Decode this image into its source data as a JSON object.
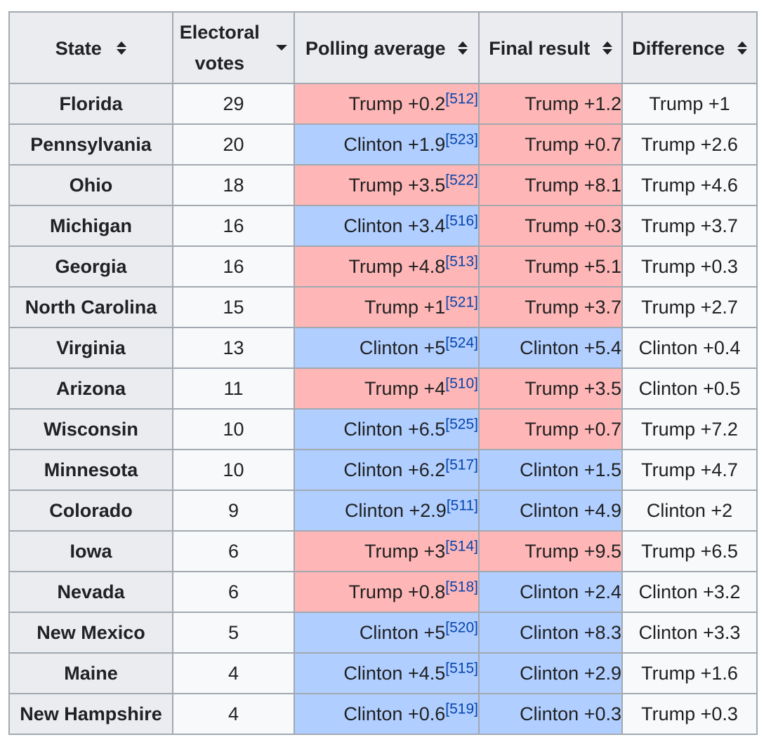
{
  "table": {
    "headers": {
      "state": "State",
      "electoral_line1": "Electoral",
      "electoral_line2": "votes",
      "polling": "Polling average",
      "final": "Final result",
      "difference": "Difference"
    },
    "rows": [
      {
        "state": "Florida",
        "votes": "29",
        "poll": "Trump +0.2",
        "poll_ref": "512",
        "poll_party": "rep",
        "final": "Trump +1.2",
        "final_party": "rep",
        "diff": "Trump +1"
      },
      {
        "state": "Pennsylvania",
        "votes": "20",
        "poll": "Clinton +1.9",
        "poll_ref": "523",
        "poll_party": "dem",
        "final": "Trump +0.7",
        "final_party": "rep",
        "diff": "Trump +2.6"
      },
      {
        "state": "Ohio",
        "votes": "18",
        "poll": "Trump +3.5",
        "poll_ref": "522",
        "poll_party": "rep",
        "final": "Trump +8.1",
        "final_party": "rep",
        "diff": "Trump +4.6"
      },
      {
        "state": "Michigan",
        "votes": "16",
        "poll": "Clinton +3.4",
        "poll_ref": "516",
        "poll_party": "dem",
        "final": "Trump +0.3",
        "final_party": "rep",
        "diff": "Trump +3.7"
      },
      {
        "state": "Georgia",
        "votes": "16",
        "poll": "Trump +4.8",
        "poll_ref": "513",
        "poll_party": "rep",
        "final": "Trump +5.1",
        "final_party": "rep",
        "diff": "Trump +0.3"
      },
      {
        "state": "North Carolina",
        "votes": "15",
        "poll": "Trump +1",
        "poll_ref": "521",
        "poll_party": "rep",
        "final": "Trump +3.7",
        "final_party": "rep",
        "diff": "Trump +2.7"
      },
      {
        "state": "Virginia",
        "votes": "13",
        "poll": "Clinton +5",
        "poll_ref": "524",
        "poll_party": "dem",
        "final": "Clinton +5.4",
        "final_party": "dem",
        "diff": "Clinton +0.4"
      },
      {
        "state": "Arizona",
        "votes": "11",
        "poll": "Trump +4",
        "poll_ref": "510",
        "poll_party": "rep",
        "final": "Trump +3.5",
        "final_party": "rep",
        "diff": "Clinton +0.5"
      },
      {
        "state": "Wisconsin",
        "votes": "10",
        "poll": "Clinton +6.5",
        "poll_ref": "525",
        "poll_party": "dem",
        "final": "Trump +0.7",
        "final_party": "rep",
        "diff": "Trump +7.2"
      },
      {
        "state": "Minnesota",
        "votes": "10",
        "poll": "Clinton +6.2",
        "poll_ref": "517",
        "poll_party": "dem",
        "final": "Clinton +1.5",
        "final_party": "dem",
        "diff": "Trump +4.7"
      },
      {
        "state": "Colorado",
        "votes": "9",
        "poll": "Clinton +2.9",
        "poll_ref": "511",
        "poll_party": "dem",
        "final": "Clinton +4.9",
        "final_party": "dem",
        "diff": "Clinton +2"
      },
      {
        "state": "Iowa",
        "votes": "6",
        "poll": "Trump +3",
        "poll_ref": "514",
        "poll_party": "rep",
        "final": "Trump +9.5",
        "final_party": "rep",
        "diff": "Trump +6.5"
      },
      {
        "state": "Nevada",
        "votes": "6",
        "poll": "Trump +0.8",
        "poll_ref": "518",
        "poll_party": "rep",
        "final": "Clinton +2.4",
        "final_party": "dem",
        "diff": "Clinton +3.2"
      },
      {
        "state": "New Mexico",
        "votes": "5",
        "poll": "Clinton +5",
        "poll_ref": "520",
        "poll_party": "dem",
        "final": "Clinton +8.3",
        "final_party": "dem",
        "diff": "Clinton +3.3"
      },
      {
        "state": "Maine",
        "votes": "4",
        "poll": "Clinton +4.5",
        "poll_ref": "515",
        "poll_party": "dem",
        "final": "Clinton +2.9",
        "final_party": "dem",
        "diff": "Trump +1.6"
      },
      {
        "state": "New Hampshire",
        "votes": "4",
        "poll": "Clinton +0.6",
        "poll_ref": "519",
        "poll_party": "dem",
        "final": "Clinton +0.3",
        "final_party": "dem",
        "diff": "Trump +0.3"
      }
    ]
  },
  "colors": {
    "rep": "#ffb6b6",
    "dem": "#b0ceff",
    "header_bg": "#eaecf0",
    "cell_bg": "#f8f9fa",
    "link": "#0645ad"
  }
}
